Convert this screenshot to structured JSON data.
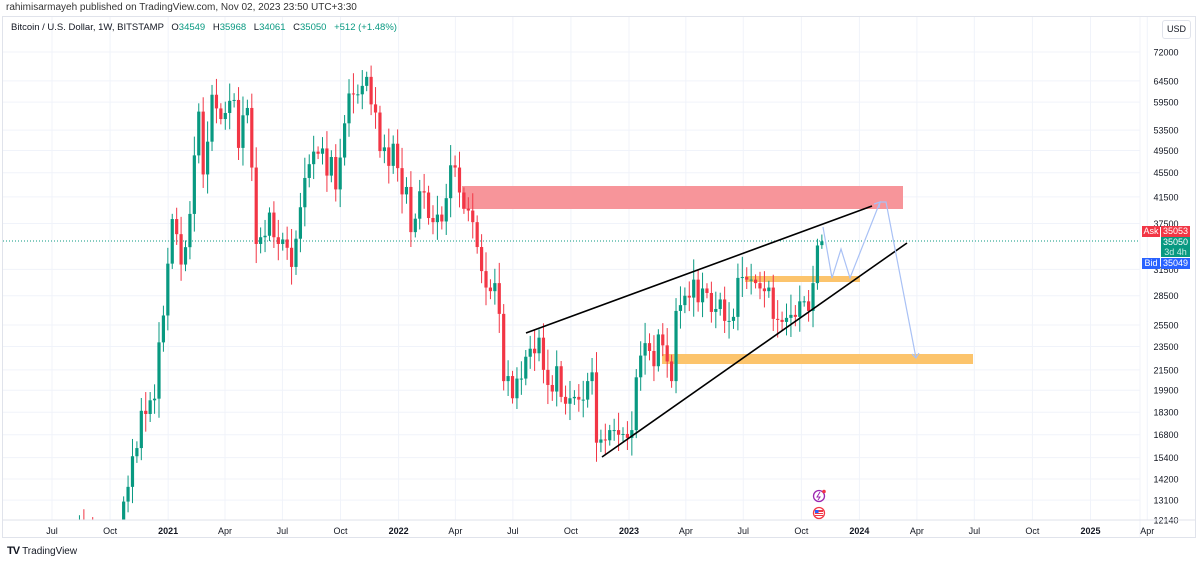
{
  "publisher_line": "rahimisarmayeh published on TradingView.com, Nov 02, 2023 23:50 UTC+3:30",
  "legend": {
    "symbol": "Bitcoin / U.S. Dollar, 1W, BITSTAMP",
    "o_label": "O",
    "o": "34549",
    "h_label": "H",
    "h": "35968",
    "l_label": "L",
    "l": "34061",
    "c_label": "C",
    "c": "35050",
    "change": "+512 (+1.48%)"
  },
  "currency_button": "USD",
  "price_tags": {
    "ask_label": "Ask",
    "ask": "35053",
    "last": "35050",
    "countdown": "3d 4h",
    "bid_label": "Bid",
    "bid": "35049"
  },
  "brand": "TradingView",
  "colors": {
    "up": "#089981",
    "down": "#f23645",
    "ask": "#f23645",
    "bid": "#2962ff",
    "resistance_zone": "#f7959a",
    "support_zone": "#fcc46c",
    "projection": "#a9c1f5"
  },
  "chart_data": {
    "type": "candlestick",
    "title": "Bitcoin / U.S. Dollar, 1W, BITSTAMP",
    "scale": "log",
    "ylim": [
      12140,
      72000
    ],
    "y_ticks": [
      "72000",
      "64500",
      "59500",
      "53500",
      "49500",
      "45500",
      "41500",
      "37500",
      "31500",
      "28500",
      "25500",
      "23500",
      "21500",
      "19900",
      "18300",
      "16800",
      "15400",
      "14200",
      "13100",
      "12140"
    ],
    "x_ticks": [
      {
        "label": "Jul",
        "date": "2020-07-01"
      },
      {
        "label": "Oct",
        "date": "2020-10-01"
      },
      {
        "label": "2021",
        "date": "2021-01-01",
        "bold": true
      },
      {
        "label": "Apr",
        "date": "2021-04-01"
      },
      {
        "label": "Jul",
        "date": "2021-07-01"
      },
      {
        "label": "Oct",
        "date": "2021-10-01"
      },
      {
        "label": "2022",
        "date": "2022-01-01",
        "bold": true
      },
      {
        "label": "Apr",
        "date": "2022-04-01"
      },
      {
        "label": "Jul",
        "date": "2022-07-01"
      },
      {
        "label": "Oct",
        "date": "2022-10-01"
      },
      {
        "label": "2023",
        "date": "2023-01-01",
        "bold": true
      },
      {
        "label": "Apr",
        "date": "2023-04-01"
      },
      {
        "label": "Jul",
        "date": "2023-07-01"
      },
      {
        "label": "Oct",
        "date": "2023-10-01"
      },
      {
        "label": "2024",
        "date": "2024-01-01",
        "bold": true
      },
      {
        "label": "Apr",
        "date": "2024-04-01"
      },
      {
        "label": "Jul",
        "date": "2024-07-01"
      },
      {
        "label": "Oct",
        "date": "2024-10-01"
      },
      {
        "label": "2025",
        "date": "2025-01-01",
        "bold": true
      },
      {
        "label": "Apr",
        "date": "2025-04-01"
      }
    ],
    "first_week": "2020-08-03",
    "first_open": 11100,
    "weekly_closes": [
      11770,
      11850,
      11650,
      11700,
      10280,
      10330,
      11080,
      10740,
      10660,
      11380,
      11370,
      13030,
      13780,
      15480,
      15970,
      18400,
      18180,
      19150,
      19270,
      23870,
      26440,
      32200,
      38150,
      36020,
      32090,
      34280,
      38900,
      48600,
      57400,
      45200,
      51200,
      61200,
      58100,
      55800,
      57100,
      59800,
      60000,
      50000,
      56600,
      58200,
      46400,
      34700,
      35600,
      35800,
      39100,
      35600,
      34700,
      35300,
      34200,
      31800,
      35400,
      39900,
      44600,
      47000,
      49300,
      48900,
      49900,
      45000,
      48300,
      42700,
      48200,
      54900,
      61500,
      61300,
      61300,
      63300,
      65500,
      59000,
      57200,
      49400,
      50100,
      46700,
      50800,
      46300,
      41900,
      43100,
      36300,
      38200,
      42400,
      42200,
      38300,
      37700,
      38800,
      37800,
      41300,
      46800,
      46400,
      42200,
      39700,
      39400,
      37700,
      34300,
      31300,
      29400,
      29000,
      29900,
      26600,
      20600,
      21000,
      19300,
      20800,
      20800,
      22600,
      23300,
      22900,
      24300,
      21500,
      20300,
      19800,
      21800,
      19400,
      18900,
      19300,
      19400,
      19200,
      19200,
      20600,
      21300,
      16300,
      16500,
      16450,
      17100,
      17100,
      16800,
      16850,
      16600,
      17100,
      20900,
      22700,
      23800,
      23100,
      21800,
      24600,
      23600,
      22200,
      20600,
      26900,
      27500,
      28500,
      28300,
      30300,
      27800,
      29300,
      28800,
      26800,
      27100,
      28100,
      25900,
      25900,
      26300,
      30500,
      30600,
      30300,
      30300,
      29900,
      29300,
      29000,
      29400,
      26100,
      26000,
      25800,
      26200,
      26500,
      26300,
      27900,
      27900,
      26900,
      29900,
      34500,
      35050
    ],
    "last_candle": {
      "o": 34549,
      "h": 35968,
      "l": 34061,
      "c": 35050
    },
    "last_price": 35050,
    "annotations": {
      "resistance_zone": [
        39630,
        43260
      ],
      "support_zone_upper": [
        30030,
        30720
      ],
      "support_zone_lower": [
        21980,
        22840
      ],
      "rising_wedge": true,
      "projection_path": true
    }
  }
}
